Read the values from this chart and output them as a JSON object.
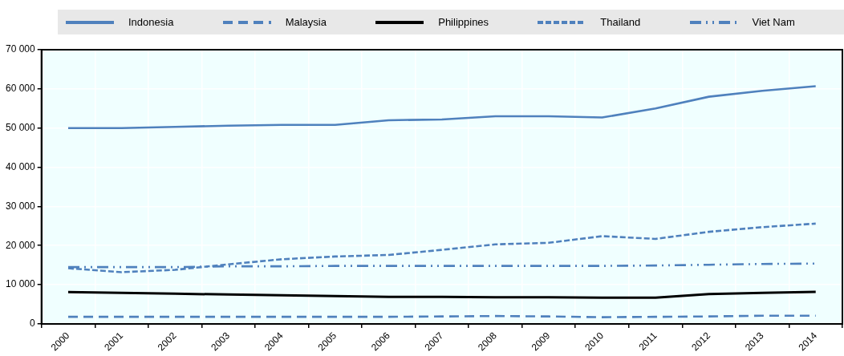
{
  "chart_data": {
    "type": "line",
    "categories": [
      "2000",
      "2001",
      "2002",
      "2003",
      "2004",
      "2005",
      "2006",
      "2007",
      "2008",
      "2009",
      "2010",
      "2011",
      "2012",
      "2013",
      "2014"
    ],
    "series": [
      {
        "name": "Indonesia",
        "color": "#4f81bd",
        "line_style": "solid",
        "values": [
          50000,
          50000,
          50300,
          50600,
          50800,
          50800,
          52000,
          52200,
          53000,
          53000,
          52700,
          55000,
          58000,
          59500,
          60700
        ]
      },
      {
        "name": "Malaysia",
        "color": "#4f81bd",
        "line_style": "dashed",
        "values": [
          1800,
          1800,
          1800,
          1800,
          1800,
          1800,
          1800,
          1900,
          2000,
          1900,
          1700,
          1800,
          1900,
          2100,
          2100
        ]
      },
      {
        "name": "Philippines",
        "color": "#000000",
        "line_style": "solid",
        "values": [
          8100,
          7900,
          7700,
          7500,
          7300,
          7100,
          6900,
          6900,
          6800,
          6800,
          6700,
          6700,
          7600,
          7900,
          8200
        ]
      },
      {
        "name": "Thailand",
        "color": "#4f81bd",
        "line_style": "dotted",
        "values": [
          14200,
          13200,
          13800,
          15200,
          16500,
          17200,
          17600,
          18900,
          20300,
          20700,
          22400,
          21700,
          23500,
          24700,
          25600
        ]
      },
      {
        "name": "Viet Nam",
        "color": "#4f81bd",
        "line_style": "dashdot",
        "values": [
          14500,
          14500,
          14500,
          14700,
          14700,
          14800,
          14800,
          14800,
          14800,
          14800,
          14800,
          14900,
          15100,
          15300,
          15400
        ]
      }
    ],
    "ylim": [
      0,
      70000
    ],
    "yticks": [
      {
        "value": 0,
        "label": "0"
      },
      {
        "value": 10000,
        "label": "10 000"
      },
      {
        "value": 20000,
        "label": "20 000"
      },
      {
        "value": 30000,
        "label": "30 000"
      },
      {
        "value": 40000,
        "label": "40 000"
      },
      {
        "value": 50000,
        "label": "50 000"
      },
      {
        "value": 60000,
        "label": "60 000"
      },
      {
        "value": 70000,
        "label": "70 000"
      }
    ],
    "grid": true,
    "legend": "top",
    "marker": "none"
  }
}
